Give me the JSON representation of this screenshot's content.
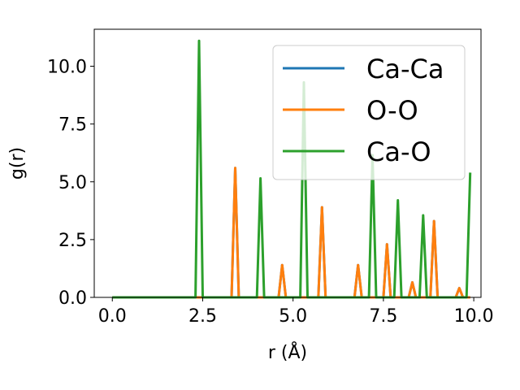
{
  "chart_data": {
    "type": "line",
    "xlabel": "r (Å)",
    "ylabel": "g(r)",
    "xlim": [
      -0.5,
      10.2
    ],
    "ylim": [
      0,
      11.6
    ],
    "xticks": [
      0.0,
      2.5,
      5.0,
      7.5,
      10.0
    ],
    "xtick_labels": [
      "0.0",
      "2.5",
      "5.0",
      "7.5",
      "10.0"
    ],
    "yticks": [
      0.0,
      2.5,
      5.0,
      7.5,
      10.0
    ],
    "ytick_labels": [
      "0.0",
      "2.5",
      "5.0",
      "7.5",
      "10.0"
    ],
    "grid": false,
    "legend_position": "top-right",
    "series": [
      {
        "name": "Ca-Ca",
        "color": "#1f77b4",
        "x": [
          0.0,
          3.3,
          3.4,
          3.5,
          4.6,
          4.7,
          4.8,
          5.7,
          5.8,
          5.9,
          6.7,
          6.8,
          6.9,
          7.5,
          7.6,
          7.7,
          8.2,
          8.3,
          8.4,
          8.8,
          8.9,
          9.0,
          9.5,
          9.6,
          9.7,
          9.9
        ],
        "y": [
          0.0,
          0.0,
          5.6,
          0.0,
          0.0,
          1.4,
          0.0,
          0.0,
          3.9,
          0.0,
          0.0,
          1.4,
          0.0,
          0.0,
          2.3,
          0.0,
          0.0,
          0.65,
          0.0,
          0.0,
          3.3,
          0.0,
          0.0,
          0.4,
          0.0,
          0.0
        ]
      },
      {
        "name": "O-O",
        "color": "#ff7f0e",
        "x": [
          0.0,
          3.3,
          3.4,
          3.5,
          4.6,
          4.7,
          4.8,
          5.7,
          5.8,
          5.9,
          6.7,
          6.8,
          6.9,
          7.5,
          7.6,
          7.7,
          8.2,
          8.3,
          8.4,
          8.8,
          8.9,
          9.0,
          9.5,
          9.6,
          9.7,
          9.9
        ],
        "y": [
          0.0,
          0.0,
          5.6,
          0.0,
          0.0,
          1.4,
          0.0,
          0.0,
          3.9,
          0.0,
          0.0,
          1.4,
          0.0,
          0.0,
          2.3,
          0.0,
          0.0,
          0.65,
          0.0,
          0.0,
          3.3,
          0.0,
          0.0,
          0.4,
          0.0,
          0.0
        ]
      },
      {
        "name": "Ca-O",
        "color": "#2ca02c",
        "x": [
          0.0,
          2.3,
          2.4,
          2.5,
          4.0,
          4.1,
          4.2,
          5.2,
          5.3,
          5.4,
          7.1,
          7.2,
          7.3,
          7.8,
          7.9,
          8.0,
          8.5,
          8.6,
          8.7,
          9.8,
          9.9
        ],
        "y": [
          0.0,
          0.0,
          11.1,
          0.0,
          0.0,
          5.15,
          0.0,
          0.0,
          9.3,
          0.0,
          0.0,
          6.15,
          0.0,
          0.0,
          4.2,
          0.0,
          0.0,
          3.55,
          0.0,
          0.0,
          5.4
        ]
      }
    ]
  }
}
